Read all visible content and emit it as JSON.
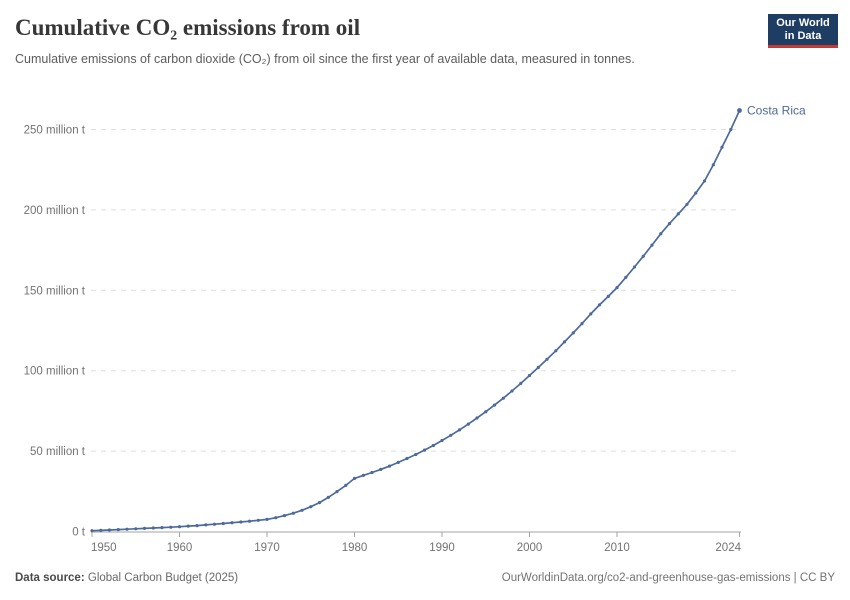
{
  "header": {
    "title": "Cumulative CO₂ emissions from oil",
    "subtitle": "Cumulative emissions of carbon dioxide (CO₂) from oil since the first year of available data, measured in tonnes.",
    "logo": {
      "line1": "Our World",
      "line2": "in Data"
    }
  },
  "footer": {
    "source_label": "Data source:",
    "source_value": "Global Carbon Budget (2025)",
    "license": "OurWorldinData.org/co2-and-greenhouse-gas-emissions | CC BY"
  },
  "colors": {
    "series_blue": "#4C6A9C",
    "gridline": "#dedede",
    "axis": "#a3a3a3",
    "tick_label": "#737373",
    "logo_navy": "#1d3d63",
    "logo_red": "#c53a32"
  },
  "chart_data": {
    "type": "line",
    "title": "Cumulative CO₂ emissions from oil",
    "unit": "tonnes",
    "xlabel": "",
    "ylabel": "",
    "grid": true,
    "xlim": [
      1950,
      2024
    ],
    "ylim": [
      0,
      262
    ],
    "x_ticks": [
      {
        "year": 1950,
        "label": "1950"
      },
      {
        "year": 1960,
        "label": "1960"
      },
      {
        "year": 1970,
        "label": "1970"
      },
      {
        "year": 1980,
        "label": "1980"
      },
      {
        "year": 1990,
        "label": "1990"
      },
      {
        "year": 2000,
        "label": "2000"
      },
      {
        "year": 2010,
        "label": "2010"
      },
      {
        "year": 2024,
        "label": "2024"
      }
    ],
    "y_ticks": [
      {
        "value": 0,
        "label": "0 t"
      },
      {
        "value": 50,
        "label": "50 million t"
      },
      {
        "value": 100,
        "label": "100 million t"
      },
      {
        "value": 150,
        "label": "150 million t"
      },
      {
        "value": 200,
        "label": "200 million t"
      },
      {
        "value": 250,
        "label": "250 million t"
      }
    ],
    "series": [
      {
        "name": "Costa Rica",
        "color": "#4C6A9C",
        "x": [
          1950,
          1951,
          1952,
          1953,
          1954,
          1955,
          1956,
          1957,
          1958,
          1959,
          1960,
          1961,
          1962,
          1963,
          1964,
          1965,
          1966,
          1967,
          1968,
          1969,
          1970,
          1971,
          1972,
          1973,
          1974,
          1975,
          1976,
          1977,
          1978,
          1979,
          1980,
          1981,
          1982,
          1983,
          1984,
          1985,
          1986,
          1987,
          1988,
          1989,
          1990,
          1991,
          1992,
          1993,
          1994,
          1995,
          1996,
          1997,
          1998,
          1999,
          2000,
          2001,
          2002,
          2003,
          2004,
          2005,
          2006,
          2007,
          2008,
          2009,
          2010,
          2011,
          2012,
          2013,
          2014,
          2015,
          2016,
          2017,
          2018,
          2019,
          2020,
          2021,
          2022,
          2023,
          2024
        ],
        "values_million_t": [
          0.5,
          0.7,
          0.95,
          1.2,
          1.45,
          1.7,
          1.95,
          2.2,
          2.45,
          2.7,
          3.0,
          3.35,
          3.7,
          4.1,
          4.55,
          5.0,
          5.45,
          5.9,
          6.4,
          6.95,
          7.5,
          8.6,
          9.9,
          11.4,
          13.2,
          15.4,
          18.0,
          21.2,
          24.8,
          28.7,
          33.0,
          34.9,
          36.7,
          38.6,
          40.7,
          43.0,
          45.4,
          47.9,
          50.6,
          53.5,
          56.6,
          59.8,
          63.2,
          66.8,
          70.6,
          74.5,
          78.6,
          82.9,
          87.4,
          92.1,
          97.0,
          102.0,
          107.1,
          112.4,
          117.9,
          123.5,
          129.3,
          135.3,
          140.9,
          146.2,
          151.7,
          158.0,
          164.5,
          171.2,
          178.1,
          185.2,
          191.5,
          197.5,
          203.5,
          210.5,
          218.0,
          228.0,
          239.0,
          250.0,
          261.8
        ]
      }
    ],
    "legend": "entity label at line end"
  }
}
